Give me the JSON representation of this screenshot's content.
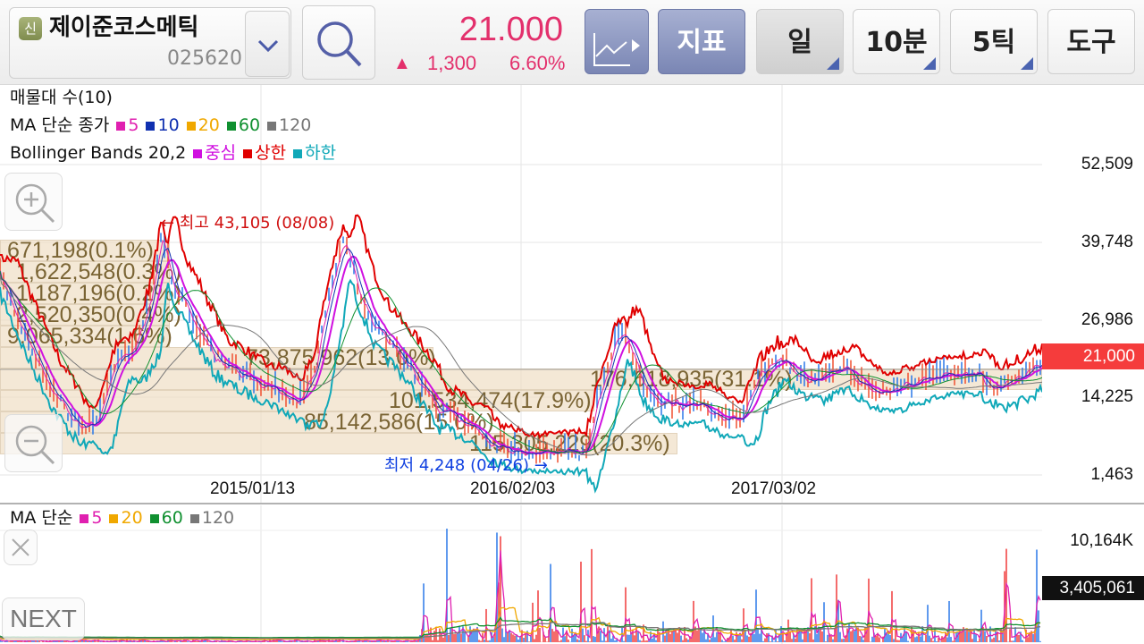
{
  "header": {
    "badge": "신",
    "stock_name": "제이준코스메틱",
    "stock_code": "025620",
    "price": "21.000",
    "change_arrow": "▲",
    "change": "1,300",
    "change_pct": "6.60%",
    "price_color": "#e3306c",
    "buttons": {
      "indicator": "지표",
      "period_day": "일",
      "period_10min": "10분",
      "tick_5": "5틱",
      "tools": "도구"
    }
  },
  "price_pane": {
    "legend": {
      "volume_profile": "매물대 수(10)",
      "ma_label": "MA 단순 종가",
      "ma_items": [
        {
          "label": "5",
          "color": "#e020b0"
        },
        {
          "label": "10",
          "color": "#1030b0"
        },
        {
          "label": "20",
          "color": "#f0a800"
        },
        {
          "label": "60",
          "color": "#109030"
        },
        {
          "label": "120",
          "color": "#777777"
        }
      ],
      "bb_label": "Bollinger Bands 20,2",
      "bb_items": [
        {
          "label": "중심",
          "color": "#d010e0"
        },
        {
          "label": "상한",
          "color": "#e00000"
        },
        {
          "label": "하한",
          "color": "#10a8b8"
        }
      ]
    },
    "y_axis": [
      "52,509",
      "39,748",
      "26,986",
      "14,225",
      "1,463"
    ],
    "current_price_tag": "21,000",
    "x_axis": [
      "2015/01/13",
      "2016/02/03",
      "2017/03/02"
    ],
    "high_label": "← 최고 43,105 (08/08)",
    "low_label": "최저 4,248 (04/26) →",
    "volume_profile": [
      "671,198(0.1%)",
      "1,622,548(0.3%)",
      "1,187,196(0.2%)",
      "2,520,350(0.4%)",
      "9,065,334(1.6%)",
      "73,875,962(13.0%)",
      "176,618,935(31.1%)",
      "101,534,474(17.9%)",
      "85,142,586(15.0%)",
      "115,305,229(20.3%)"
    ]
  },
  "volume_pane": {
    "legend": {
      "ma_label": "MA 단순",
      "ma_items": [
        {
          "label": "5",
          "color": "#e020b0"
        },
        {
          "label": "20",
          "color": "#f0a800"
        },
        {
          "label": "60",
          "color": "#109030"
        },
        {
          "label": "120",
          "color": "#777777"
        }
      ]
    },
    "y_axis_max": "10,164K",
    "current_volume_tag": "3,405,061"
  },
  "overlay": {
    "next": "NEXT"
  }
}
